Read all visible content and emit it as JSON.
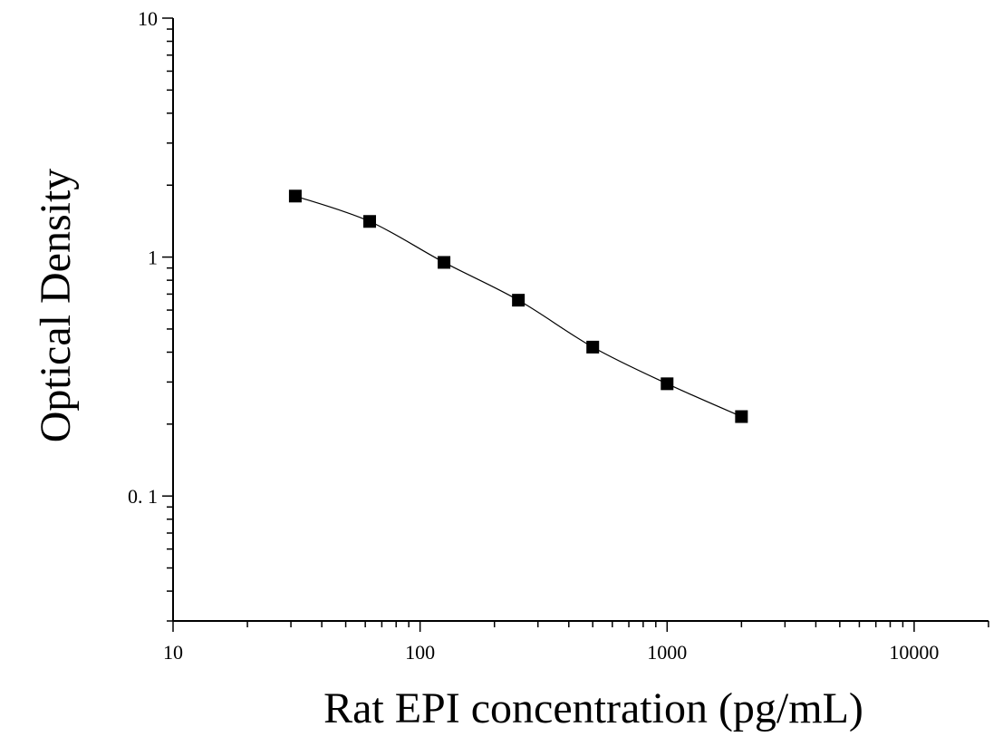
{
  "chart_data": {
    "type": "scatter",
    "title": "",
    "xlabel": "Rat EPI concentration (pg/mL)",
    "ylabel": "Optical Density",
    "x_scale": "log",
    "y_scale": "log",
    "xlim": [
      10,
      20000
    ],
    "ylim": [
      0.03,
      10
    ],
    "x_ticks": [
      10,
      100,
      1000,
      10000
    ],
    "x_tick_labels": [
      "10",
      "100",
      "1000",
      "10000"
    ],
    "y_ticks": [
      0.1,
      1,
      10
    ],
    "y_tick_labels": [
      "0. 1",
      "1",
      "10"
    ],
    "grid": false,
    "legend": "none",
    "marker": "square",
    "color": "#000000",
    "series": [
      {
        "x": [
          31.25,
          62.5,
          125,
          250,
          500,
          1000,
          2000
        ],
        "y": [
          1.8,
          1.41,
          0.95,
          0.66,
          0.42,
          0.295,
          0.215
        ],
        "fit_curve": true
      }
    ]
  }
}
